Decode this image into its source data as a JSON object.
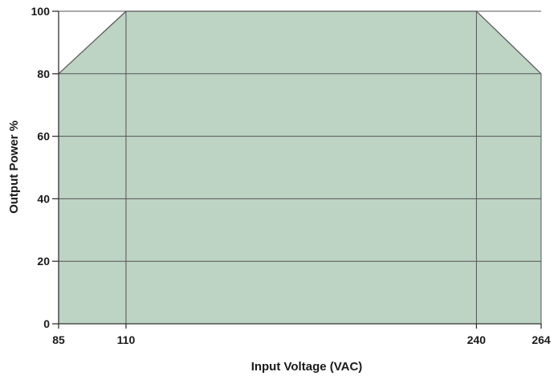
{
  "chart_data": {
    "type": "area",
    "xlabel": "Input Voltage (VAC)",
    "ylabel": "Output Power %",
    "x": [
      85,
      110,
      240,
      264
    ],
    "y": [
      80,
      100,
      100,
      80
    ],
    "xlim": [
      85,
      264
    ],
    "ylim": [
      0,
      100
    ],
    "xticks": [
      85,
      110,
      240,
      264
    ],
    "yticks": [
      0,
      20,
      40,
      60,
      80,
      100
    ],
    "grid": true,
    "fill_color": "#bdd3c4",
    "grid_color": "#555555"
  }
}
